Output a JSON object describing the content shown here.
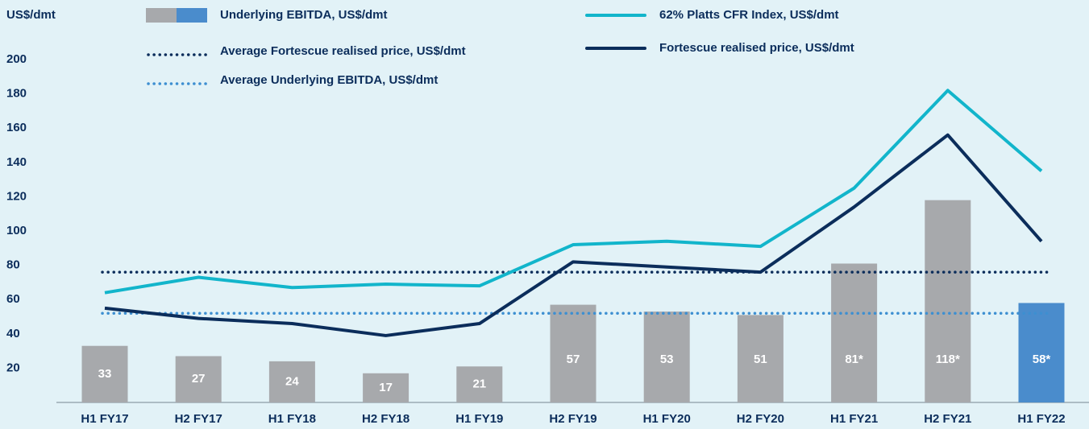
{
  "chart_data": {
    "type": "bar",
    "y_axis_label": "US$/dmt",
    "categories": [
      "H1 FY17",
      "H2 FY17",
      "H1 FY18",
      "H2 FY18",
      "H1 FY19",
      "H2 FY19",
      "H1 FY20",
      "H2 FY20",
      "H1 FY21",
      "H2 FY21",
      "H1 FY22"
    ],
    "ylim": [
      0,
      200
    ],
    "yticks": [
      20,
      40,
      60,
      80,
      100,
      120,
      140,
      160,
      180,
      200
    ],
    "series": [
      {
        "name": "Underlying EBITDA, US$/dmt",
        "type": "bar",
        "colors": [
          "#a7a9ac",
          "#a7a9ac",
          "#a7a9ac",
          "#a7a9ac",
          "#a7a9ac",
          "#a7a9ac",
          "#a7a9ac",
          "#a7a9ac",
          "#a7a9ac",
          "#a7a9ac",
          "#4a8ccc"
        ],
        "values": [
          33,
          27,
          24,
          17,
          21,
          57,
          53,
          51,
          81,
          118,
          58
        ],
        "value_labels": [
          "33",
          "27",
          "24",
          "17",
          "21",
          "57",
          "53",
          "51",
          "81*",
          "118*",
          "58*"
        ]
      },
      {
        "name": "62% Platts CFR Index, US$/dmt",
        "type": "line",
        "color": "#12b5cb",
        "values": [
          64,
          73,
          67,
          69,
          68,
          92,
          94,
          91,
          125,
          182,
          135
        ]
      },
      {
        "name": "Fortescue realised price, US$/dmt",
        "type": "line",
        "color": "#0b2d5b",
        "values": [
          55,
          49,
          46,
          39,
          46,
          82,
          79,
          76,
          114,
          156,
          94
        ]
      }
    ],
    "reference_lines": [
      {
        "name": "Average Fortescue realised price, US$/dmt",
        "color": "#0b2d5b",
        "value": 76
      },
      {
        "name": "Average Underlying EBITDA, US$/dmt",
        "color": "#3d8fd1",
        "value": 52
      }
    ]
  }
}
